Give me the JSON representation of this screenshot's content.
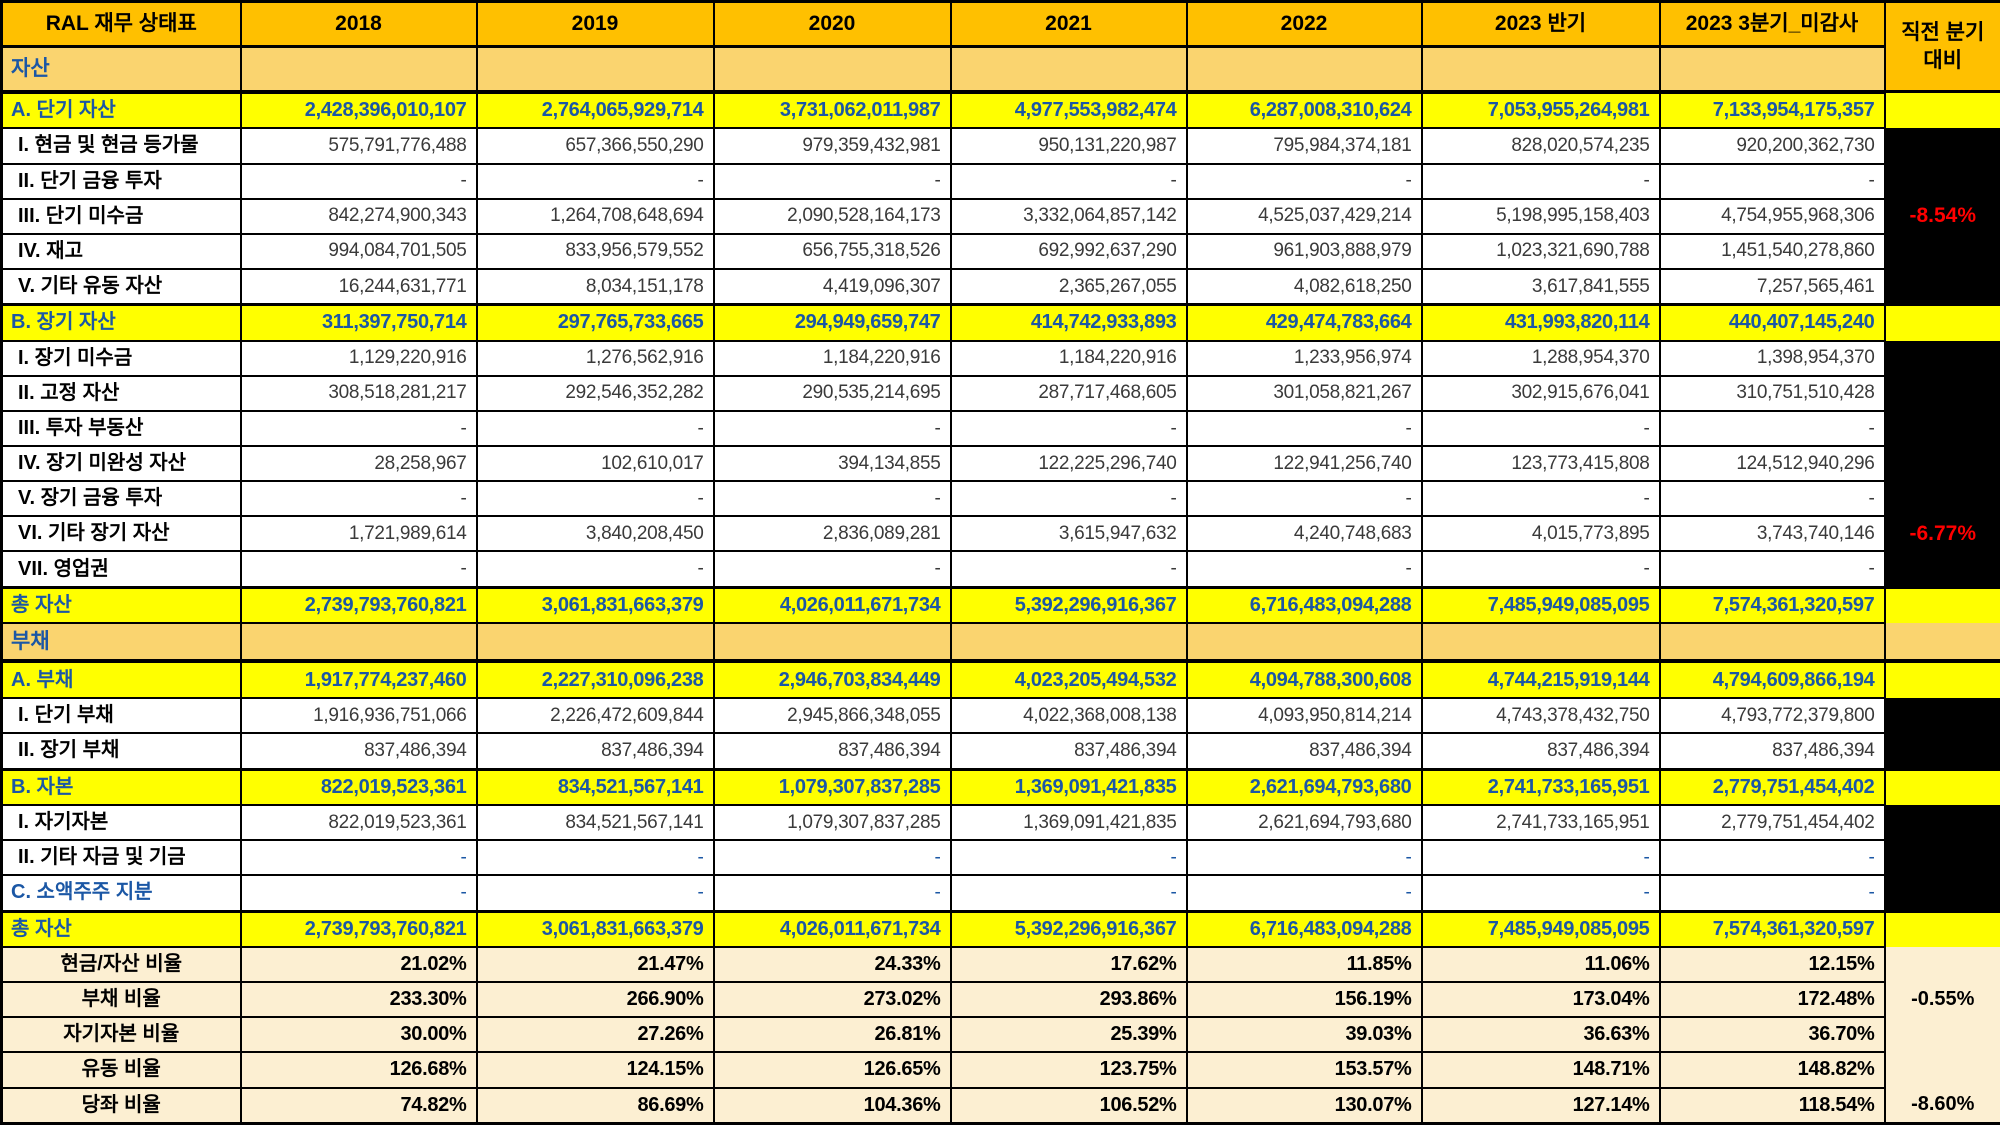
{
  "colors": {
    "header_orange": "#FFC000",
    "section_tan": "#FAD46F",
    "highlight_yellow": "#FFFF00",
    "ratio_cream": "#FCEFD2",
    "accent_blue": "#1B57A5",
    "value_gray": "#3A3A3A",
    "delta_red": "#FF0000",
    "delta_black": "#000000"
  },
  "table": {
    "corner_title": "RAL 재무 상태표",
    "year_columns": [
      "2018",
      "2019",
      "2020",
      "2021",
      "2022",
      "2023 반기",
      "2023 3분기_미감사"
    ],
    "delta_header_line1": "직전 분기",
    "delta_header_line2": "대비",
    "rows": [
      {
        "label": "자산",
        "type": "section",
        "values": [
          "",
          "",
          "",
          "",
          "",
          "",
          ""
        ],
        "delta": null
      },
      {
        "label": "A. 단기 자산",
        "type": "total",
        "values": [
          "2,428,396,010,107",
          "2,764,065,929,714",
          "3,731,062,011,987",
          "4,977,553,982,474",
          "6,287,008,310,624",
          "7,053,955,264,981",
          "7,133,954,175,357"
        ],
        "delta": ""
      },
      {
        "label": "I. 현금 및 현금 등가물",
        "type": "item",
        "values": [
          "575,791,776,488",
          "657,366,550,290",
          "979,359,432,981",
          "950,131,220,987",
          "795,984,374,181",
          "828,020,574,235",
          "920,200,362,730"
        ],
        "delta": ""
      },
      {
        "label": "II. 단기 금융 투자",
        "type": "item",
        "values": [
          "-",
          "-",
          "-",
          "-",
          "-",
          "-",
          "-"
        ],
        "delta": ""
      },
      {
        "label": "III. 단기 미수금",
        "type": "item",
        "values": [
          "842,274,900,343",
          "1,264,708,648,694",
          "2,090,528,164,173",
          "3,332,064,857,142",
          "4,525,037,429,214",
          "5,198,995,158,403",
          "4,754,955,968,306"
        ],
        "delta": "-8.54%"
      },
      {
        "label": "IV. 재고",
        "type": "item",
        "values": [
          "994,084,701,505",
          "833,956,579,552",
          "656,755,318,526",
          "692,992,637,290",
          "961,903,888,979",
          "1,023,321,690,788",
          "1,451,540,278,860"
        ],
        "delta": ""
      },
      {
        "label": "V. 기타 유동 자산",
        "type": "item",
        "values": [
          "16,244,631,771",
          "8,034,151,178",
          "4,419,096,307",
          "2,365,267,055",
          "4,082,618,250",
          "3,617,841,555",
          "7,257,565,461"
        ],
        "delta": ""
      },
      {
        "label": "B. 장기 자산",
        "type": "total",
        "values": [
          "311,397,750,714",
          "297,765,733,665",
          "294,949,659,747",
          "414,742,933,893",
          "429,474,783,664",
          "431,993,820,114",
          "440,407,145,240"
        ],
        "delta": ""
      },
      {
        "label": "I. 장기 미수금",
        "type": "item",
        "values": [
          "1,129,220,916",
          "1,276,562,916",
          "1,184,220,916",
          "1,184,220,916",
          "1,233,956,974",
          "1,288,954,370",
          "1,398,954,370"
        ],
        "delta": ""
      },
      {
        "label": "II. 고정 자산",
        "type": "item",
        "values": [
          "308,518,281,217",
          "292,546,352,282",
          "290,535,214,695",
          "287,717,468,605",
          "301,058,821,267",
          "302,915,676,041",
          "310,751,510,428"
        ],
        "delta": ""
      },
      {
        "label": "III. 투자 부동산",
        "type": "item",
        "values": [
          "-",
          "-",
          "-",
          "-",
          "-",
          "-",
          "-"
        ],
        "delta": ""
      },
      {
        "label": "IV. 장기 미완성 자산",
        "type": "item",
        "values": [
          "28,258,967",
          "102,610,017",
          "394,134,855",
          "122,225,296,740",
          "122,941,256,740",
          "123,773,415,808",
          "124,512,940,296"
        ],
        "delta": ""
      },
      {
        "label": "V. 장기 금융 투자",
        "type": "item",
        "values": [
          "-",
          "-",
          "-",
          "-",
          "-",
          "-",
          "-"
        ],
        "delta": ""
      },
      {
        "label": "VI. 기타 장기 자산",
        "type": "item",
        "values": [
          "1,721,989,614",
          "3,840,208,450",
          "2,836,089,281",
          "3,615,947,632",
          "4,240,748,683",
          "4,015,773,895",
          "3,743,740,146"
        ],
        "delta": "-6.77%"
      },
      {
        "label": "VII. 영업권",
        "type": "item",
        "values": [
          "-",
          "-",
          "-",
          "-",
          "-",
          "-",
          "-"
        ],
        "delta": ""
      },
      {
        "label": "총 자산",
        "type": "total",
        "values": [
          "2,739,793,760,821",
          "3,061,831,663,379",
          "4,026,011,671,734",
          "5,392,296,916,367",
          "6,716,483,094,288",
          "7,485,949,085,095",
          "7,574,361,320,597"
        ],
        "delta": ""
      },
      {
        "label": "부채",
        "type": "section",
        "values": [
          "",
          "",
          "",
          "",
          "",
          "",
          ""
        ],
        "delta": ""
      },
      {
        "label": "A. 부채",
        "type": "total",
        "values": [
          "1,917,774,237,460",
          "2,227,310,096,238",
          "2,946,703,834,449",
          "4,023,205,494,532",
          "4,094,788,300,608",
          "4,744,215,919,144",
          "4,794,609,866,194"
        ],
        "delta": ""
      },
      {
        "label": "I. 단기 부채",
        "type": "item",
        "values": [
          "1,916,936,751,066",
          "2,226,472,609,844",
          "2,945,866,348,055",
          "4,022,368,008,138",
          "4,093,950,814,214",
          "4,743,378,432,750",
          "4,793,772,379,800"
        ],
        "delta": ""
      },
      {
        "label": "II. 장기 부채",
        "type": "item",
        "values": [
          "837,486,394",
          "837,486,394",
          "837,486,394",
          "837,486,394",
          "837,486,394",
          "837,486,394",
          "837,486,394"
        ],
        "delta": ""
      },
      {
        "label": "B. 자본",
        "type": "total",
        "values": [
          "822,019,523,361",
          "834,521,567,141",
          "1,079,307,837,285",
          "1,369,091,421,835",
          "2,621,694,793,680",
          "2,741,733,165,951",
          "2,779,751,454,402"
        ],
        "delta": ""
      },
      {
        "label": "I. 자기자본",
        "type": "item",
        "values": [
          "822,019,523,361",
          "834,521,567,141",
          "1,079,307,837,285",
          "1,369,091,421,835",
          "2,621,694,793,680",
          "2,741,733,165,951",
          "2,779,751,454,402"
        ],
        "delta": ""
      },
      {
        "label": "II. 기타 자금 및 기금",
        "type": "itemblue",
        "values": [
          "-",
          "-",
          "-",
          "-",
          "-",
          "-",
          "-"
        ],
        "delta": ""
      },
      {
        "label": "C. 소액주주 지분",
        "type": "minority",
        "values": [
          "-",
          "-",
          "-",
          "-",
          "-",
          "-",
          "-"
        ],
        "delta": ""
      },
      {
        "label": "총 자산",
        "type": "total",
        "values": [
          "2,739,793,760,821",
          "3,061,831,663,379",
          "4,026,011,671,734",
          "5,392,296,916,367",
          "6,716,483,094,288",
          "7,485,949,085,095",
          "7,574,361,320,597"
        ],
        "delta": ""
      },
      {
        "label": "현금/자산 비율",
        "type": "ratio",
        "values": [
          "21.02%",
          "21.47%",
          "24.33%",
          "17.62%",
          "11.85%",
          "11.06%",
          "12.15%"
        ],
        "delta": ""
      },
      {
        "label": "부채 비율",
        "type": "ratio",
        "values": [
          "233.30%",
          "266.90%",
          "273.02%",
          "293.86%",
          "156.19%",
          "173.04%",
          "172.48%"
        ],
        "delta": "-0.55%"
      },
      {
        "label": "자기자본 비율",
        "type": "ratio",
        "values": [
          "30.00%",
          "27.26%",
          "26.81%",
          "25.39%",
          "39.03%",
          "36.63%",
          "36.70%"
        ],
        "delta": ""
      },
      {
        "label": "유동 비율",
        "type": "ratio",
        "values": [
          "126.68%",
          "124.15%",
          "126.65%",
          "123.75%",
          "153.57%",
          "148.71%",
          "148.82%"
        ],
        "delta": ""
      },
      {
        "label": "당좌 비율",
        "type": "ratio",
        "values": [
          "74.82%",
          "86.69%",
          "104.36%",
          "106.52%",
          "130.07%",
          "127.14%",
          "118.54%"
        ],
        "delta": "-8.60%"
      }
    ]
  }
}
